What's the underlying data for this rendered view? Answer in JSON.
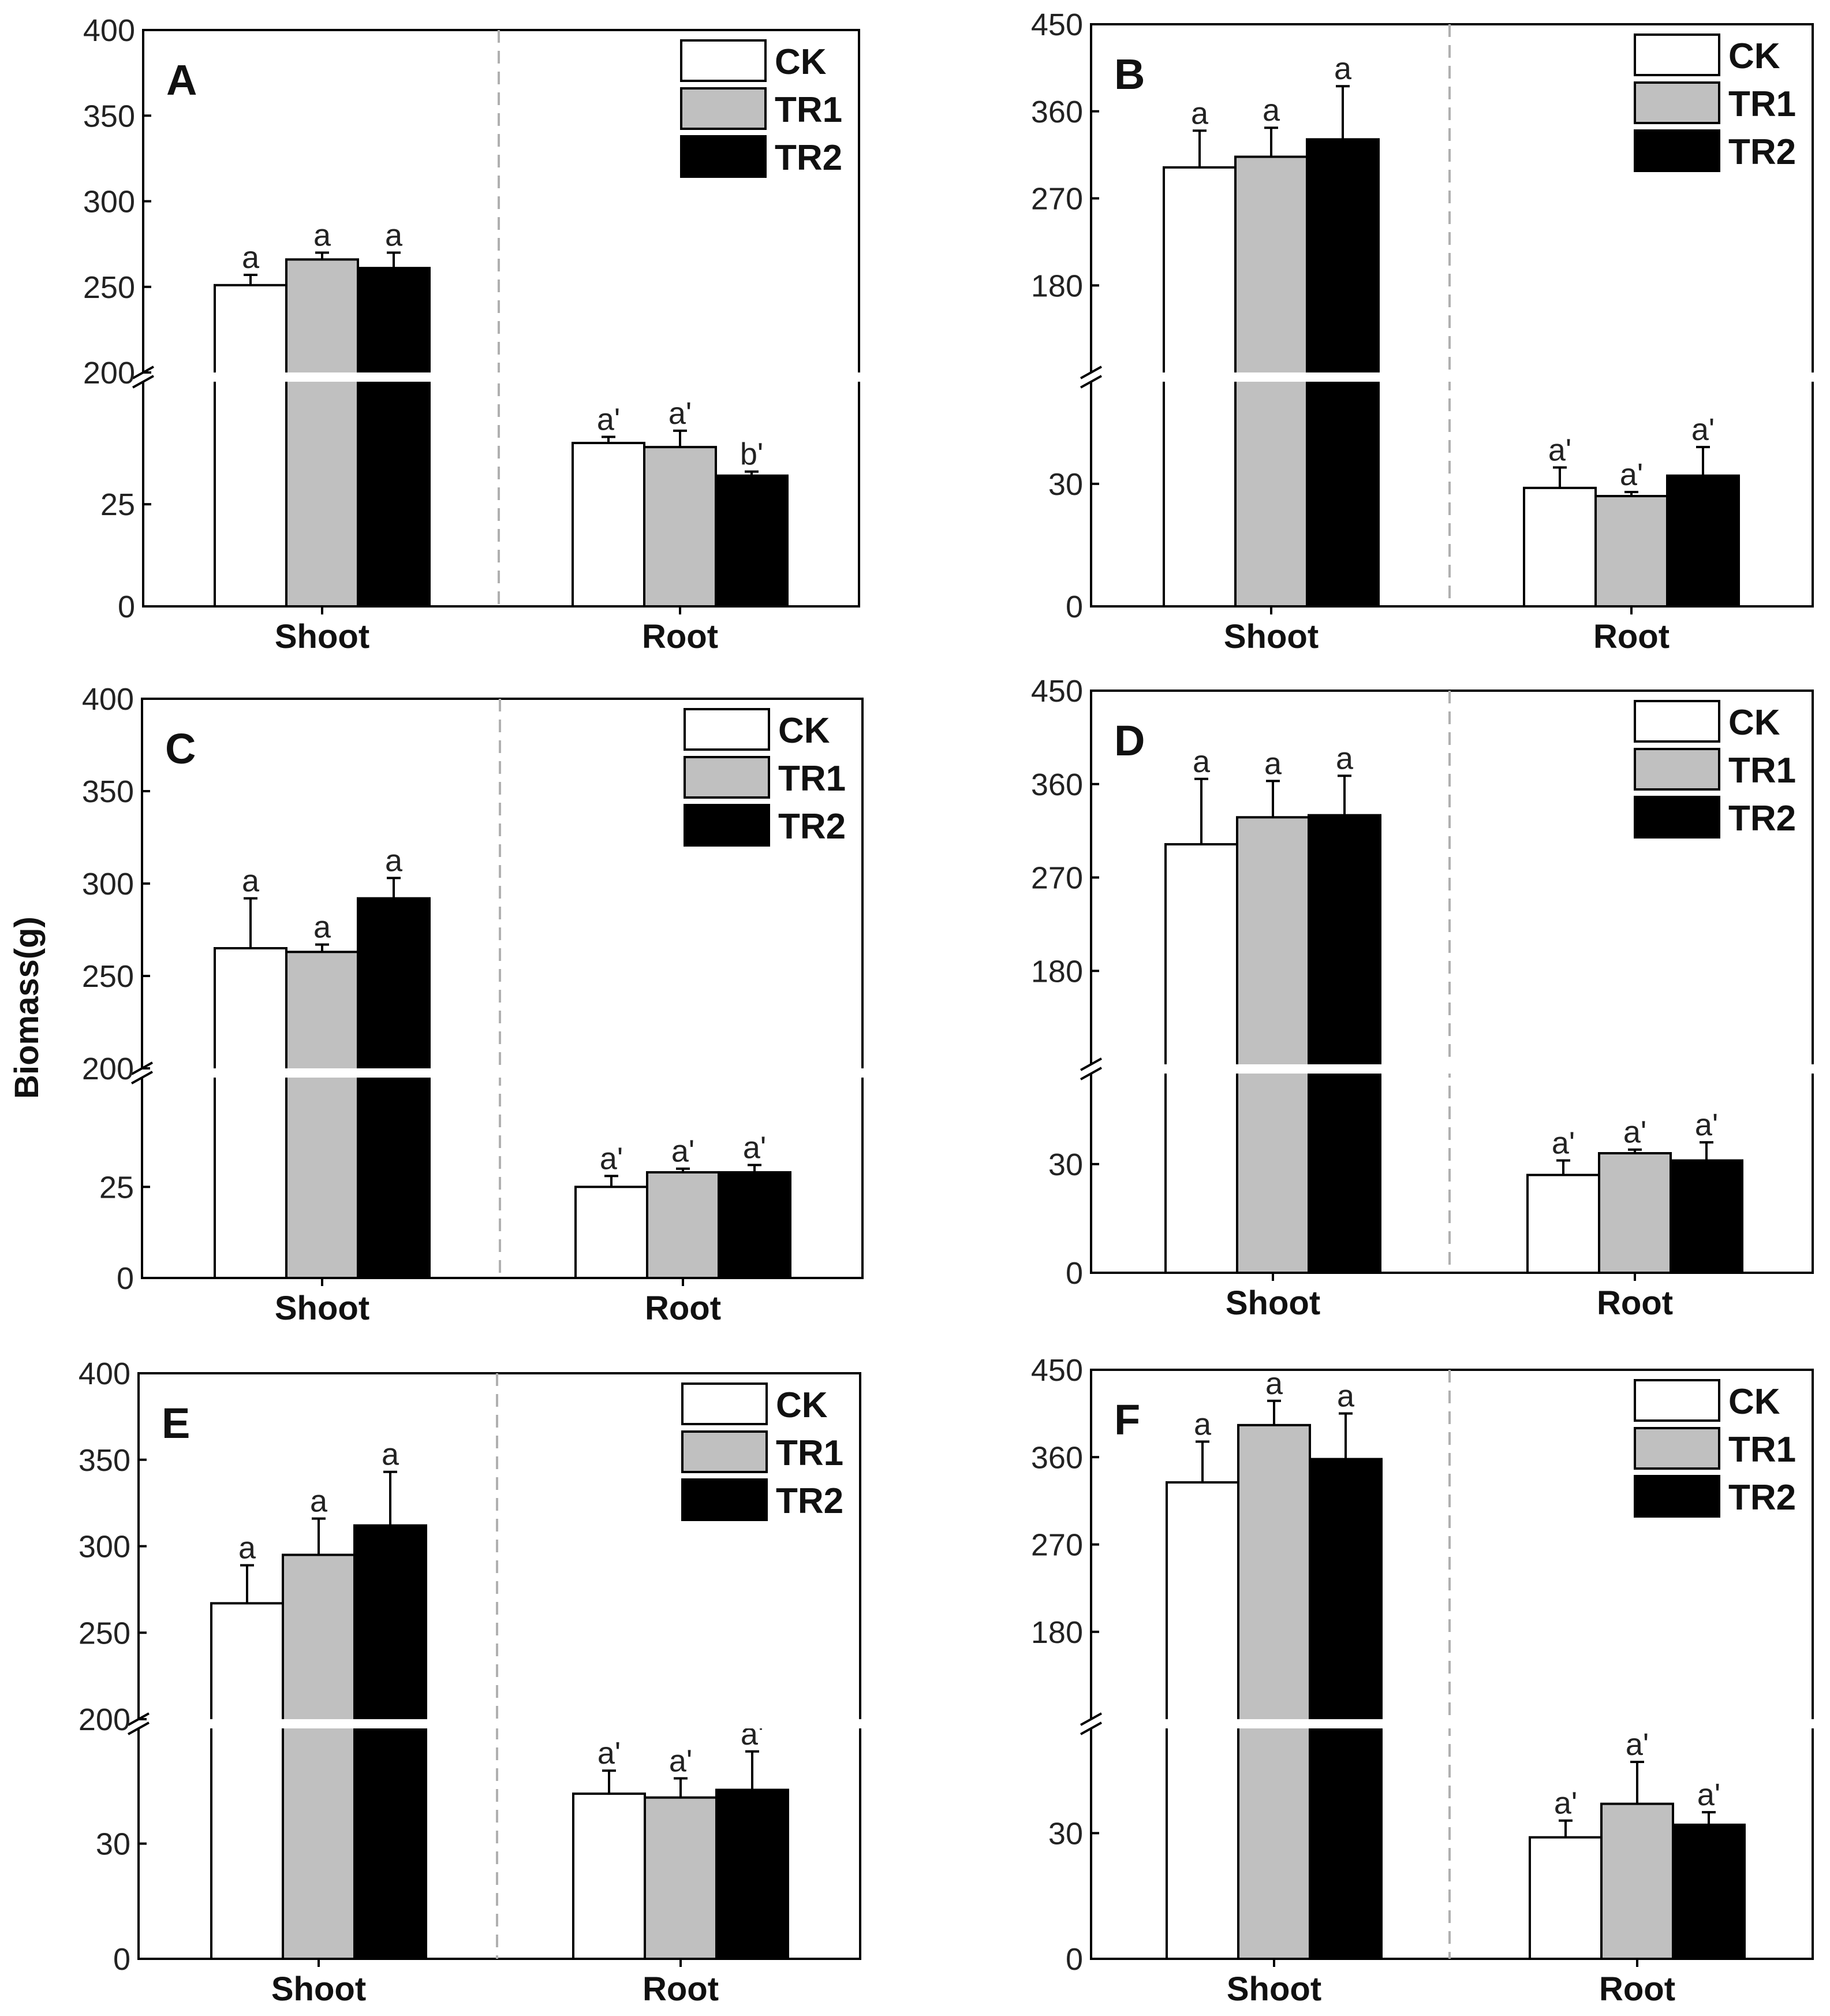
{
  "figure": {
    "shared_ylabel": "Biomass(g)",
    "series_colors": {
      "CK": "#ffffff",
      "TR1": "#c0c0c0",
      "TR2": "#000000"
    }
  },
  "chart_data": [
    {
      "type": "bar",
      "panel": "A",
      "categories": [
        "Shoot",
        "Root"
      ],
      "legend": [
        "CK",
        "TR1",
        "TR2"
      ],
      "legend_position": "top-right",
      "ylabel": "Biomass(g)",
      "y_broken": true,
      "upper_ticks": [
        200,
        250,
        300,
        350,
        400
      ],
      "lower_ticks": [
        0,
        25
      ],
      "series": [
        {
          "name": "CK",
          "values": [
            251,
            40
          ],
          "errors": [
            6,
            1.5
          ],
          "labels": [
            "a",
            "a'"
          ]
        },
        {
          "name": "TR1",
          "values": [
            266,
            39
          ],
          "errors": [
            4,
            4
          ],
          "labels": [
            "a",
            "a'"
          ]
        },
        {
          "name": "TR2",
          "values": [
            261,
            32
          ],
          "errors": [
            9,
            1
          ],
          "labels": [
            "a",
            "b'"
          ]
        }
      ]
    },
    {
      "type": "bar",
      "panel": "B",
      "categories": [
        "Shoot",
        "Root"
      ],
      "legend": [
        "CK",
        "TR1",
        "TR2"
      ],
      "legend_position": "top-right",
      "ylabel": "Biomass(g)",
      "y_broken": true,
      "upper_ticks": [
        180,
        270,
        360,
        450
      ],
      "lower_ticks": [
        0,
        30
      ],
      "series": [
        {
          "name": "CK",
          "values": [
            302,
            29
          ],
          "errors": [
            38,
            5
          ],
          "labels": [
            "a",
            "a'"
          ]
        },
        {
          "name": "TR1",
          "values": [
            313,
            27
          ],
          "errors": [
            30,
            1
          ],
          "labels": [
            "a",
            "a'"
          ]
        },
        {
          "name": "TR2",
          "values": [
            331,
            32
          ],
          "errors": [
            55,
            7
          ],
          "labels": [
            "a",
            "a'"
          ]
        }
      ]
    },
    {
      "type": "bar",
      "panel": "C",
      "categories": [
        "Shoot",
        "Root"
      ],
      "legend": [
        "CK",
        "TR1",
        "TR2"
      ],
      "legend_position": "top-right",
      "ylabel": "Biomass(g)",
      "y_broken": true,
      "upper_ticks": [
        200,
        250,
        300,
        350,
        400
      ],
      "lower_ticks": [
        0,
        25
      ],
      "series": [
        {
          "name": "CK",
          "values": [
            265,
            25
          ],
          "errors": [
            27,
            3
          ],
          "labels": [
            "a",
            "a'"
          ]
        },
        {
          "name": "TR1",
          "values": [
            263,
            29
          ],
          "errors": [
            4,
            1
          ],
          "labels": [
            "a",
            "a'"
          ]
        },
        {
          "name": "TR2",
          "values": [
            292,
            29
          ],
          "errors": [
            11,
            2
          ],
          "labels": [
            "a",
            "a'"
          ]
        }
      ]
    },
    {
      "type": "bar",
      "panel": "D",
      "categories": [
        "Shoot",
        "Root"
      ],
      "legend": [
        "CK",
        "TR1",
        "TR2"
      ],
      "legend_position": "top-right",
      "ylabel": "Biomass(g)",
      "y_broken": true,
      "upper_ticks": [
        180,
        270,
        360,
        450
      ],
      "lower_ticks": [
        0,
        30
      ],
      "series": [
        {
          "name": "CK",
          "values": [
            302,
            27
          ],
          "errors": [
            63,
            4
          ],
          "labels": [
            "a",
            "a'"
          ]
        },
        {
          "name": "TR1",
          "values": [
            328,
            33
          ],
          "errors": [
            35,
            1
          ],
          "labels": [
            "a",
            "a'"
          ]
        },
        {
          "name": "TR2",
          "values": [
            330,
            31
          ],
          "errors": [
            38,
            5
          ],
          "labels": [
            "a",
            "a'"
          ]
        }
      ]
    },
    {
      "type": "bar",
      "panel": "E",
      "categories": [
        "Shoot",
        "Root"
      ],
      "legend": [
        "CK",
        "TR1",
        "TR2"
      ],
      "legend_position": "top-right",
      "ylabel": "Biomass(g)",
      "y_broken": true,
      "upper_ticks": [
        200,
        250,
        300,
        350,
        400
      ],
      "lower_ticks": [
        0,
        30
      ],
      "series": [
        {
          "name": "CK",
          "values": [
            267,
            43
          ],
          "errors": [
            22,
            6
          ],
          "labels": [
            "a",
            "a'"
          ]
        },
        {
          "name": "TR1",
          "values": [
            295,
            42
          ],
          "errors": [
            21,
            5
          ],
          "labels": [
            "a",
            "a'"
          ]
        },
        {
          "name": "TR2",
          "values": [
            312,
            44
          ],
          "errors": [
            31,
            10
          ],
          "labels": [
            "a",
            "a'"
          ]
        }
      ]
    },
    {
      "type": "bar",
      "panel": "F",
      "categories": [
        "Shoot",
        "Root"
      ],
      "legend": [
        "CK",
        "TR1",
        "TR2"
      ],
      "legend_position": "top-right",
      "ylabel": "Biomass(g)",
      "y_broken": true,
      "upper_ticks": [
        180,
        270,
        360,
        450
      ],
      "lower_ticks": [
        0,
        30
      ],
      "series": [
        {
          "name": "CK",
          "values": [
            334,
            29
          ],
          "errors": [
            42,
            4
          ],
          "labels": [
            "a",
            "a'"
          ]
        },
        {
          "name": "TR1",
          "values": [
            393,
            37
          ],
          "errors": [
            25,
            10
          ],
          "labels": [
            "a",
            "a'"
          ]
        },
        {
          "name": "TR2",
          "values": [
            358,
            32
          ],
          "errors": [
            47,
            3
          ],
          "labels": [
            "a",
            "a'"
          ]
        }
      ]
    }
  ]
}
